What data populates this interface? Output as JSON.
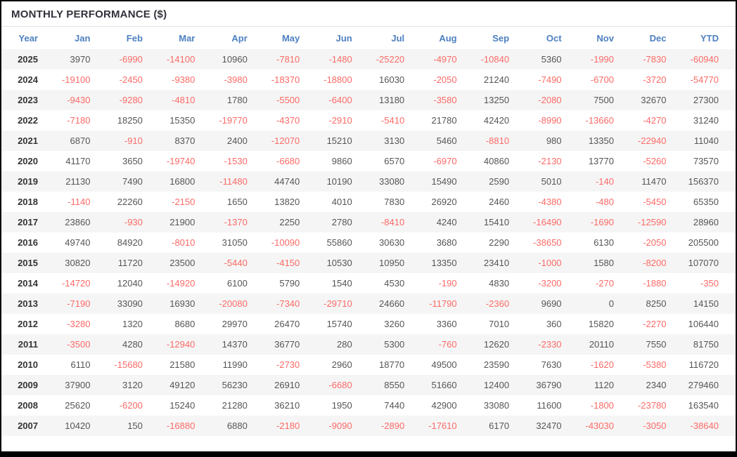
{
  "title": "MONTHLY PERFORMANCE ($)",
  "colors": {
    "header_text": "#4d80c0",
    "negative_value": "#fb6a66",
    "positive_value": "#555555",
    "row_stripe": "#f5f5f5",
    "title_text": "#32323c"
  },
  "chart_data": {
    "type": "table",
    "title": "MONTHLY PERFORMANCE ($)",
    "columns": [
      "Year",
      "Jan",
      "Feb",
      "Mar",
      "Apr",
      "May",
      "Jun",
      "Jul",
      "Aug",
      "Sep",
      "Oct",
      "Nov",
      "Dec",
      "YTD"
    ],
    "rows": [
      {
        "year": "2025",
        "values": [
          3970,
          -6990,
          -14100,
          10960,
          -7810,
          -1480,
          -25220,
          -4970,
          -10840,
          5360,
          -1990,
          -7830,
          -60940
        ]
      },
      {
        "year": "2024",
        "values": [
          -19100,
          -2450,
          -9380,
          -3980,
          -18370,
          -18800,
          16030,
          -2050,
          21240,
          -7490,
          -6700,
          -3720,
          -54770
        ]
      },
      {
        "year": "2023",
        "values": [
          -9430,
          -9280,
          -4810,
          1780,
          -5500,
          -6400,
          13180,
          -3580,
          13250,
          -2080,
          7500,
          32670,
          27300
        ]
      },
      {
        "year": "2022",
        "values": [
          -7180,
          18250,
          15350,
          -19770,
          -4370,
          -2910,
          -5410,
          21780,
          42420,
          -8990,
          -13660,
          -4270,
          31240
        ]
      },
      {
        "year": "2021",
        "values": [
          6870,
          -910,
          8370,
          2400,
          -12070,
          15210,
          3130,
          5460,
          -8810,
          980,
          13350,
          -22940,
          11040
        ]
      },
      {
        "year": "2020",
        "values": [
          41170,
          3650,
          -19740,
          -1530,
          -6680,
          9860,
          6570,
          -6970,
          40860,
          -2130,
          13770,
          -5260,
          73570
        ]
      },
      {
        "year": "2019",
        "values": [
          21130,
          7490,
          16800,
          -11480,
          44740,
          10190,
          33080,
          15490,
          2590,
          5010,
          -140,
          11470,
          156370
        ]
      },
      {
        "year": "2018",
        "values": [
          -1140,
          22260,
          -2150,
          1650,
          13820,
          4010,
          7830,
          26920,
          2460,
          -4380,
          -480,
          -5450,
          65350
        ]
      },
      {
        "year": "2017",
        "values": [
          23860,
          -930,
          21900,
          -1370,
          2250,
          2780,
          -8410,
          4240,
          15410,
          -16490,
          -1690,
          -12590,
          28960
        ]
      },
      {
        "year": "2016",
        "values": [
          49740,
          84920,
          -8010,
          31050,
          -10090,
          55860,
          30630,
          3680,
          2290,
          -38650,
          6130,
          -2050,
          205500
        ]
      },
      {
        "year": "2015",
        "values": [
          30820,
          11720,
          23500,
          -5440,
          -4150,
          10530,
          10950,
          13350,
          23410,
          -1000,
          1580,
          -8200,
          107070
        ]
      },
      {
        "year": "2014",
        "values": [
          -14720,
          12040,
          -14920,
          6100,
          5790,
          1540,
          4530,
          -190,
          4830,
          -3200,
          -270,
          -1880,
          -350
        ]
      },
      {
        "year": "2013",
        "values": [
          -7190,
          33090,
          16930,
          -20080,
          -7340,
          -29710,
          24660,
          -11790,
          -2360,
          9690,
          0,
          8250,
          14150
        ]
      },
      {
        "year": "2012",
        "values": [
          -3280,
          1320,
          8680,
          29970,
          26470,
          15740,
          3260,
          3360,
          7010,
          360,
          15820,
          -2270,
          106440
        ]
      },
      {
        "year": "2011",
        "values": [
          -3500,
          4280,
          -12940,
          14370,
          36770,
          280,
          5300,
          -760,
          12620,
          -2330,
          20110,
          7550,
          81750
        ]
      },
      {
        "year": "2010",
        "values": [
          6110,
          -15680,
          21580,
          11990,
          -2730,
          2960,
          18770,
          49500,
          23590,
          7630,
          -1620,
          -5380,
          116720
        ]
      },
      {
        "year": "2009",
        "values": [
          37900,
          3120,
          49120,
          56230,
          26910,
          -6680,
          8550,
          51660,
          12400,
          36790,
          1120,
          2340,
          279460
        ]
      },
      {
        "year": "2008",
        "values": [
          25620,
          -6200,
          15240,
          21280,
          36210,
          1950,
          7440,
          42900,
          33080,
          11600,
          -1800,
          -23780,
          163540
        ]
      },
      {
        "year": "2007",
        "values": [
          10420,
          150,
          -16880,
          6880,
          -2180,
          -9090,
          -2890,
          -17610,
          6170,
          32470,
          -43030,
          -3050,
          -38640
        ]
      }
    ]
  }
}
